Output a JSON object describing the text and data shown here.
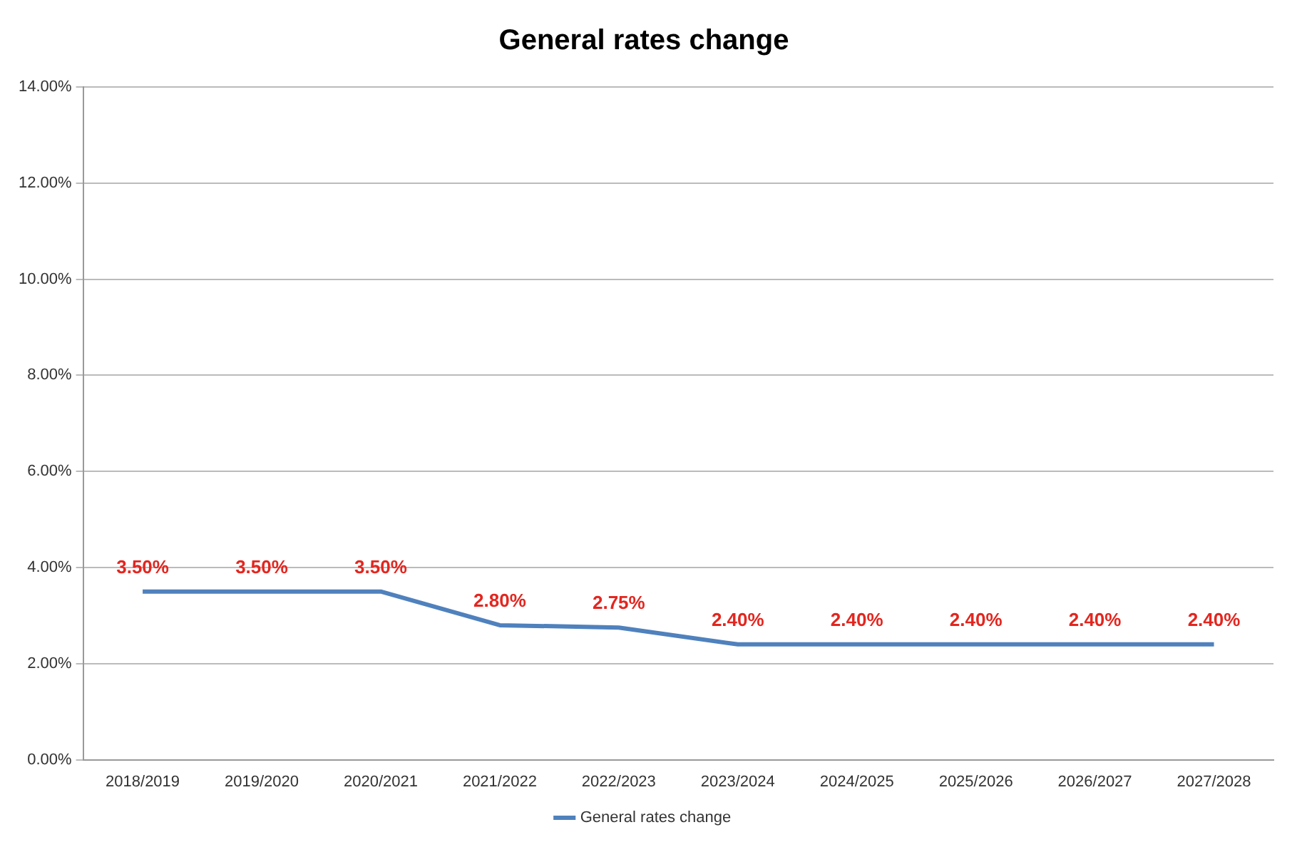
{
  "chart_data": {
    "type": "line",
    "title": "General rates change",
    "categories": [
      "2018/2019",
      "2019/2020",
      "2020/2021",
      "2021/2022",
      "2022/2023",
      "2023/2024",
      "2024/2025",
      "2025/2026",
      "2026/2027",
      "2027/2028"
    ],
    "series": [
      {
        "name": "General rates change",
        "color": "#4f81bd",
        "values": [
          3.5,
          3.5,
          3.5,
          2.8,
          2.75,
          2.4,
          2.4,
          2.4,
          2.4,
          2.4
        ],
        "value_labels": [
          "3.50%",
          "3.50%",
          "3.50%",
          "2.80%",
          "2.75%",
          "2.40%",
          "2.40%",
          "2.40%",
          "2.40%",
          "2.40%"
        ]
      }
    ],
    "ylim": [
      0,
      14
    ],
    "yticks": [
      {
        "value": 0,
        "label": "0.00%"
      },
      {
        "value": 2,
        "label": "2.00%"
      },
      {
        "value": 4,
        "label": "4.00%"
      },
      {
        "value": 6,
        "label": "6.00%"
      },
      {
        "value": 8,
        "label": "8.00%"
      },
      {
        "value": 10,
        "label": "10.00%"
      },
      {
        "value": 12,
        "label": "12.00%"
      },
      {
        "value": 14,
        "label": "14.00%"
      }
    ],
    "grid": "y",
    "legend": "bottom",
    "marker": "none",
    "line_style": "solid"
  }
}
